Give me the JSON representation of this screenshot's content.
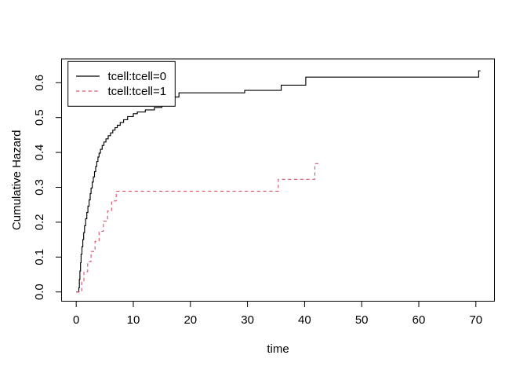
{
  "chart_data": {
    "type": "line",
    "subtype": "step-function-cumulative-hazard",
    "title": "",
    "xlabel": "time",
    "ylabel": "Cumulative Hazard",
    "xlim": [
      -2.6,
      77.3
    ],
    "ylim": [
      -0.026,
      0.668
    ],
    "x_ticks": [
      "0",
      "10",
      "20",
      "30",
      "40",
      "50",
      "60",
      "70"
    ],
    "x_tick_values": [
      0,
      10,
      20,
      30,
      40,
      50,
      60,
      70
    ],
    "y_ticks": [
      "0.0",
      "0.1",
      "0.2",
      "0.3",
      "0.4",
      "0.5",
      "0.6"
    ],
    "y_tick_values": [
      0,
      0.1,
      0.2,
      0.3,
      0.4,
      0.5,
      0.6
    ],
    "grid": false,
    "legend": {
      "position": "topleft",
      "entries": [
        {
          "label": "tcell:tcell=0",
          "color": "#000000",
          "line_style": "solid"
        },
        {
          "label": "tcell:tcell=1",
          "color": "#DF536B",
          "line_style": "dashed"
        }
      ]
    },
    "series": [
      {
        "id": "tcell0",
        "name": "tcell:tcell=0",
        "color": "#000000",
        "line_style": "solid",
        "start": [
          0,
          0
        ],
        "end_t": 70.8,
        "steps": [
          [
            0.45,
            0.012
          ],
          [
            0.55,
            0.036
          ],
          [
            0.65,
            0.06
          ],
          [
            0.75,
            0.084
          ],
          [
            0.85,
            0.108
          ],
          [
            1.0,
            0.13
          ],
          [
            1.15,
            0.15
          ],
          [
            1.3,
            0.17
          ],
          [
            1.45,
            0.19
          ],
          [
            1.65,
            0.21
          ],
          [
            1.85,
            0.228
          ],
          [
            2.05,
            0.246
          ],
          [
            2.25,
            0.264
          ],
          [
            2.45,
            0.282
          ],
          [
            2.6,
            0.298
          ],
          [
            2.8,
            0.315
          ],
          [
            3.0,
            0.33
          ],
          [
            3.2,
            0.345
          ],
          [
            3.4,
            0.36
          ],
          [
            3.6,
            0.374
          ],
          [
            3.8,
            0.387
          ],
          [
            4.0,
            0.398
          ],
          [
            4.25,
            0.409
          ],
          [
            4.55,
            0.42
          ],
          [
            4.85,
            0.43
          ],
          [
            5.2,
            0.439
          ],
          [
            5.6,
            0.448
          ],
          [
            6.0,
            0.456
          ],
          [
            6.4,
            0.464
          ],
          [
            6.8,
            0.471
          ],
          [
            7.2,
            0.478
          ],
          [
            7.7,
            0.486
          ],
          [
            8.3,
            0.494
          ],
          [
            9.0,
            0.503
          ],
          [
            10.0,
            0.511
          ],
          [
            10.7,
            0.516
          ],
          [
            12.1,
            0.522
          ],
          [
            13.7,
            0.529
          ],
          [
            15.0,
            0.537
          ],
          [
            16.2,
            0.548
          ],
          [
            17.1,
            0.559
          ],
          [
            18.0,
            0.571
          ],
          [
            29.5,
            0.578
          ],
          [
            35.9,
            0.593
          ],
          [
            40.2,
            0.616
          ],
          [
            70.5,
            0.634
          ]
        ]
      },
      {
        "id": "tcell1",
        "name": "tcell:tcell=1",
        "color": "#DF536B",
        "line_style": "dashed",
        "start": [
          0,
          0
        ],
        "end_t": 42.6,
        "steps": [
          [
            0.95,
            0.029
          ],
          [
            1.35,
            0.058
          ],
          [
            2.0,
            0.087
          ],
          [
            2.6,
            0.116
          ],
          [
            3.3,
            0.145
          ],
          [
            4.0,
            0.174
          ],
          [
            4.75,
            0.203
          ],
          [
            5.5,
            0.232
          ],
          [
            6.2,
            0.261
          ],
          [
            7.0,
            0.289
          ],
          [
            35.4,
            0.323
          ],
          [
            41.8,
            0.368
          ]
        ]
      }
    ]
  },
  "colors": {
    "background": "#FFFFFF",
    "axis": "#000000",
    "text": "#000000",
    "series_tcell0": "#000000",
    "series_tcell1": "#DF536B",
    "legend_background": "#FFFFFF"
  }
}
